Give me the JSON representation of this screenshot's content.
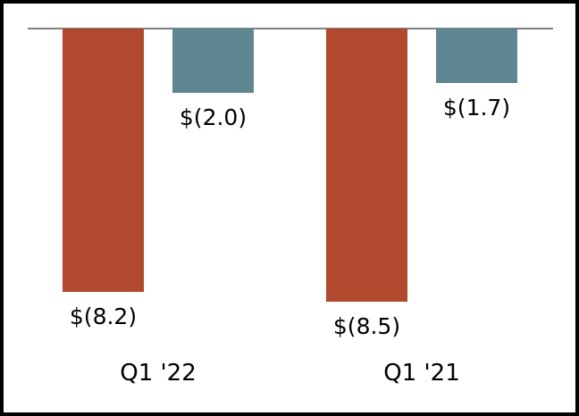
{
  "figure": {
    "background": "#ffffff",
    "border_color": "#000000"
  },
  "chart_data": {
    "type": "bar",
    "orientation": "vertical",
    "bars_direction": "negative-downward-from-top-baseline",
    "title": "",
    "xlabel": "",
    "ylabel": "",
    "categories": [
      "Q1 '22",
      "Q1 '21"
    ],
    "series": [
      {
        "color": "#b0492e",
        "values": [
          -8.2,
          -8.5
        ],
        "data_labels": [
          "$(8.2)",
          "$(8.5)"
        ]
      },
      {
        "color": "#5f8791",
        "values": [
          -2.0,
          -1.7
        ],
        "data_labels": [
          "$(2.0)",
          "$(1.7)"
        ]
      }
    ],
    "ylim": [
      -9.6,
      0
    ],
    "grid": false,
    "legend": false,
    "baseline_color": "#808080",
    "text_color": "#000000"
  }
}
